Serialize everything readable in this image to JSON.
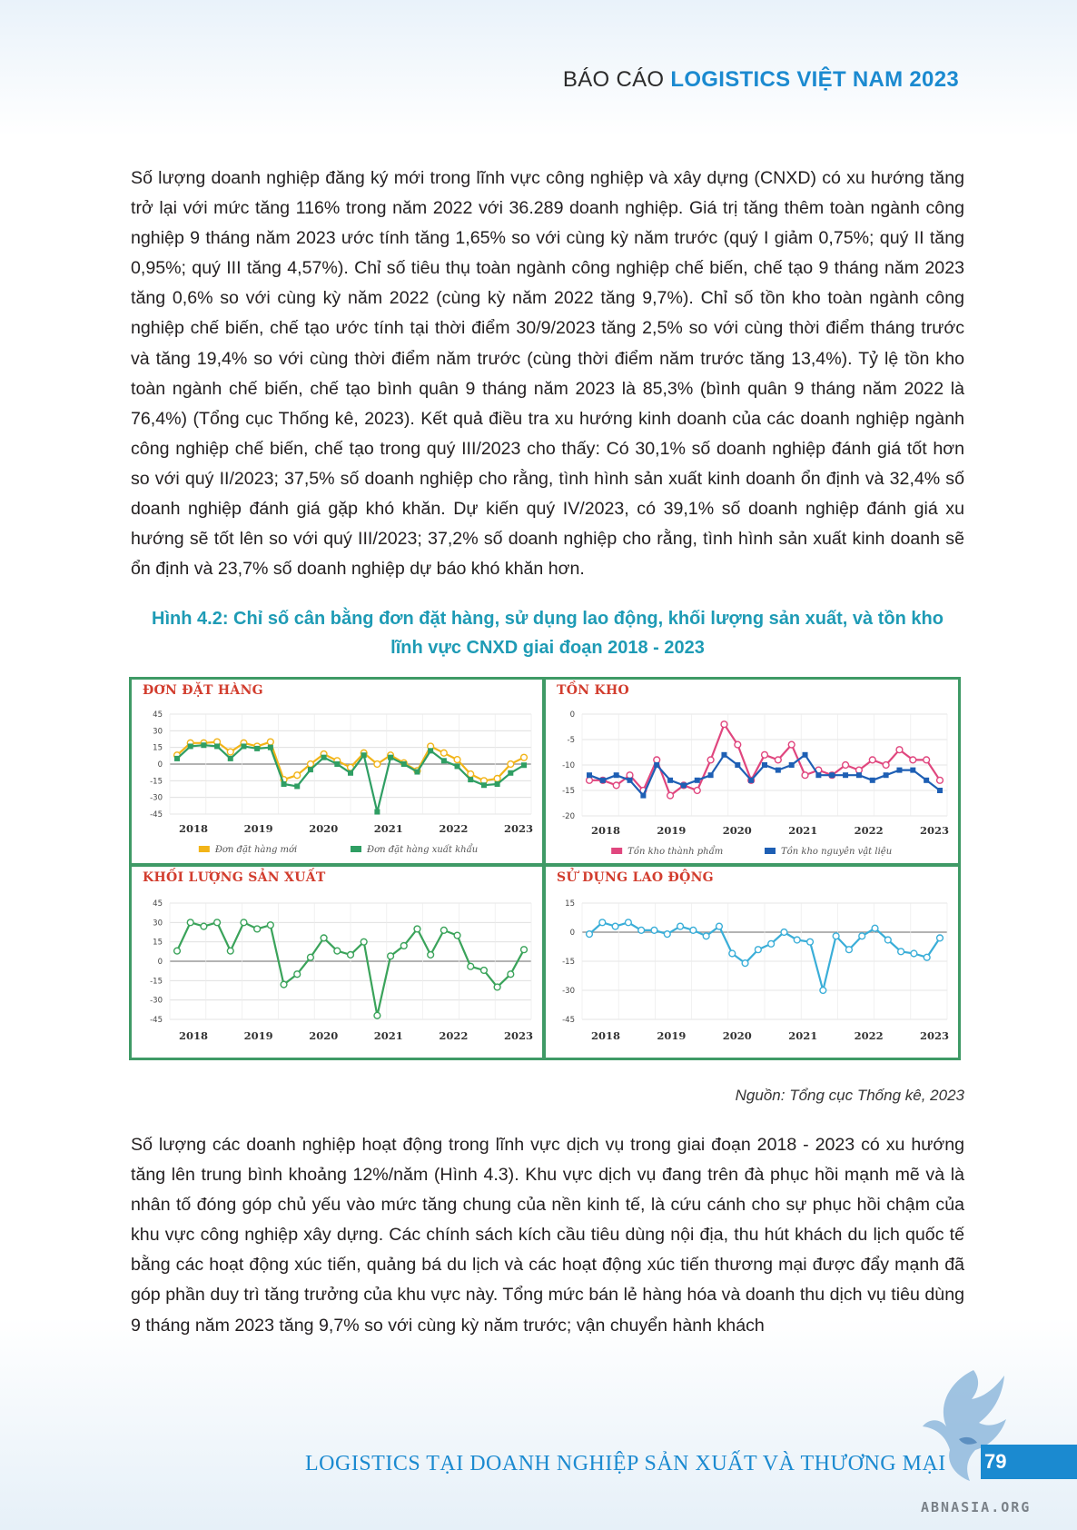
{
  "header": {
    "prefix": "BÁO CÁO",
    "brand": "LOGISTICS VIỆT NAM 2023"
  },
  "paragraphs": {
    "p1": "Số lượng doanh nghiệp đăng ký mới trong lĩnh vực công nghiệp và xây dựng (CNXD) có xu hướng tăng trở lại với mức tăng 116% trong năm 2022 với 36.289 doanh nghiệp. Giá trị tăng thêm toàn ngành công nghiệp 9 tháng năm 2023 ước tính tăng 1,65% so với cùng kỳ năm trước (quý I giảm 0,75%; quý II tăng 0,95%; quý III tăng 4,57%). Chỉ số tiêu thụ toàn ngành công nghiệp chế biến, chế tạo 9 tháng năm 2023 tăng 0,6% so với cùng kỳ năm 2022 (cùng kỳ năm 2022 tăng 9,7%). Chỉ số tồn kho toàn ngành công nghiệp chế biến, chế tạo ước tính tại thời điểm 30/9/2023 tăng 2,5% so với cùng thời điểm tháng trước và tăng 19,4% so với cùng thời điểm năm trước (cùng thời điểm năm trước tăng 13,4%). Tỷ lệ tồn kho toàn ngành chế biến, chế tạo bình quân 9 tháng năm 2023 là 85,3% (bình quân 9 tháng năm 2022 là 76,4%) (Tổng cục Thống kê, 2023). Kết quả điều tra xu hướng kinh doanh của các doanh nghiệp ngành công nghiệp chế biến, chế tạo trong quý III/2023 cho thấy: Có 30,1% số doanh nghiệp đánh giá tốt hơn so với quý II/2023; 37,5% số doanh nghiệp cho rằng, tình hình sản xuất kinh doanh ổn định và 32,4% số doanh nghiệp đánh giá gặp khó khăn. Dự kiến quý IV/2023, có 39,1% số doanh nghiệp đánh giá xu hướng sẽ tốt lên so với quý III/2023; 37,2% số doanh nghiệp cho rằng, tình hình sản xuất kinh doanh sẽ ổn định và 23,7% số doanh nghiệp dự báo khó khăn hơn.",
    "p2": "Số lượng các doanh nghiệp hoạt động trong lĩnh vực dịch vụ trong giai đoạn 2018 - 2023 có xu hướng tăng lên trung bình khoảng 12%/năm (Hình 4.3). Khu vực dịch vụ đang trên đà phục hồi mạnh mẽ và là nhân tố đóng góp chủ yếu vào mức tăng chung của nền kinh tế, là cứu cánh cho sự phục hồi chậm của khu vực công nghiệp xây dựng. Các chính sách kích cầu tiêu dùng nội địa, thu hút khách du lịch quốc tế bằng các hoạt động xúc tiến, quảng bá du lịch và các hoạt động xúc tiến thương mại được đẩy mạnh đã góp phần duy trì tăng trưởng của khu vực này. Tổng mức bán lẻ hàng hóa và doanh thu dịch vụ tiêu dùng 9 tháng năm 2023 tăng 9,7% so với cùng kỳ năm trước; vận chuyển hành khách"
  },
  "figure": {
    "caption_line1": "Hình 4.2: Chỉ số cân bằng đơn đặt hàng, sử dụng lao động, khối lượng sản xuất, và tồn kho",
    "caption_line2": "lĩnh vực CNXD giai đoạn 2018 - 2023",
    "source": "Nguồn: Tổng cục Thống kê, 2023",
    "frame_color": "#3f9a66",
    "title_color": "#d23d2e"
  },
  "chart_data": [
    {
      "type": "line",
      "title": "ĐƠN ĐẶT HÀNG",
      "year_labels": [
        "2018",
        "2019",
        "2020",
        "2021",
        "2022",
        "2023"
      ],
      "ylim": [
        -45,
        45
      ],
      "yticks": [
        45,
        30,
        15,
        0,
        -15,
        -30,
        -45
      ],
      "legend_position": "bottom",
      "series": [
        {
          "name": "Đơn đặt hàng mới",
          "color": "#f2b418",
          "marker": "open-circle",
          "values": [
            8,
            19,
            19,
            20,
            11,
            19,
            16,
            20,
            -14,
            -10,
            0,
            9,
            3,
            -3,
            10,
            0,
            8,
            1,
            -6,
            16,
            10,
            4,
            -9,
            -15,
            -13,
            0,
            6
          ]
        },
        {
          "name": "Đơn đặt hàng xuất khẩu",
          "color": "#2f9e63",
          "marker": "square",
          "values": [
            5,
            16,
            17,
            16,
            5,
            16,
            14,
            15,
            -18,
            -20,
            -5,
            6,
            0,
            -8,
            8,
            -43,
            6,
            0,
            -7,
            12,
            3,
            -2,
            -14,
            -19,
            -18,
            -8,
            -1
          ]
        }
      ]
    },
    {
      "type": "line",
      "title": "TỒN KHO",
      "year_labels": [
        "2018",
        "2019",
        "2020",
        "2021",
        "2022",
        "2023"
      ],
      "ylim": [
        -20,
        0
      ],
      "yticks": [
        0,
        -5,
        -10,
        -15,
        -20
      ],
      "legend_position": "bottom",
      "series": [
        {
          "name": "Tồn kho thành phẩm",
          "color": "#e0467e",
          "marker": "open-circle",
          "values": [
            -13,
            -13,
            -14,
            -12,
            -15,
            -9,
            -16,
            -14,
            -15,
            -9,
            -2,
            -6,
            -13,
            -8,
            -9,
            -6,
            -12,
            -11,
            -12,
            -10,
            -11,
            -9,
            -10,
            -7,
            -9,
            -9,
            -13
          ]
        },
        {
          "name": "Tồn kho nguyên vật liệu",
          "color": "#1e5fb4",
          "marker": "square",
          "values": [
            -12,
            -13,
            -12,
            -13,
            -16,
            -10,
            -13,
            -14,
            -13,
            -12,
            -8,
            -10,
            -13,
            -10,
            -11,
            -10,
            -8,
            -12,
            -12,
            -12,
            -12,
            -13,
            -12,
            -11,
            -11,
            -13,
            -15
          ]
        }
      ]
    },
    {
      "type": "line",
      "title": "KHỐI LƯỢNG SẢN XUẤT",
      "year_labels": [
        "2018",
        "2019",
        "2020",
        "2021",
        "2022",
        "2023"
      ],
      "ylim": [
        -45,
        45
      ],
      "yticks": [
        45,
        30,
        15,
        0,
        -15,
        -30,
        -45
      ],
      "series": [
        {
          "name": "Khối lượng sản xuất",
          "color": "#3aa35a",
          "marker": "open-circle",
          "values": [
            8,
            30,
            27,
            30,
            8,
            30,
            25,
            28,
            -18,
            -10,
            3,
            18,
            8,
            5,
            15,
            -42,
            4,
            12,
            25,
            5,
            24,
            20,
            -4,
            -7,
            -20,
            -10,
            9
          ]
        }
      ]
    },
    {
      "type": "line",
      "title": "SỬ DỤNG LAO ĐỘNG",
      "year_labels": [
        "2018",
        "2019",
        "2020",
        "2021",
        "2022",
        "2023"
      ],
      "ylim": [
        -45,
        15
      ],
      "yticks": [
        15,
        0,
        -15,
        -30,
        -45
      ],
      "series": [
        {
          "name": "Sử dụng lao động",
          "color": "#3aaed8",
          "marker": "open-circle",
          "values": [
            -1,
            5,
            3,
            5,
            1,
            1,
            -1,
            3,
            1,
            -2,
            3,
            -11,
            -16,
            -9,
            -6,
            0,
            -4,
            -5,
            -30,
            -2,
            -9,
            -2,
            2,
            -4,
            -10,
            -11,
            -13,
            -3
          ]
        }
      ]
    }
  ],
  "footer": {
    "title": "LOGISTICS TẠI DOANH NGHIỆP SẢN XUẤT VÀ THƯƠNG MẠI",
    "page_number": "79",
    "watermark": "ABNASIA.ORG"
  }
}
